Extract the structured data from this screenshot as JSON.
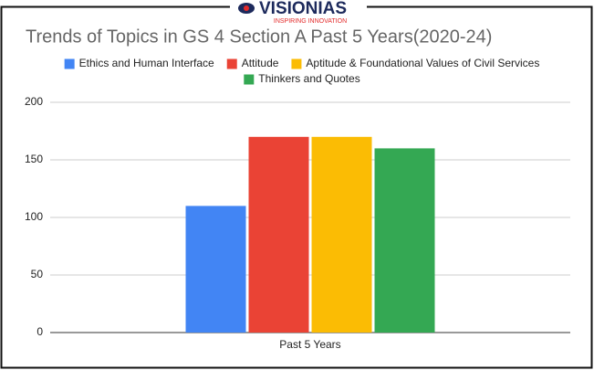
{
  "logo": {
    "name": "VISIONIAS",
    "tagline": "INSPIRING INNOVATION"
  },
  "chart_data": {
    "type": "bar",
    "title": "Trends of Topics in GS 4 Section A Past 5 Years(2020-24)",
    "categories": [
      "Past 5 Years"
    ],
    "series": [
      {
        "name": "Ethics and Human Interface",
        "color": "#4285f4",
        "values": [
          110
        ]
      },
      {
        "name": "Attitude",
        "color": "#ea4335",
        "values": [
          170
        ]
      },
      {
        "name": "Aptitude & Foundational Values of Civil Services",
        "color": "#fbbc04",
        "values": [
          170
        ]
      },
      {
        "name": "Thinkers and Quotes",
        "color": "#34a853",
        "values": [
          160
        ]
      }
    ],
    "ylim": [
      0,
      200
    ],
    "yticks": [
      0,
      50,
      100,
      150,
      200
    ],
    "grid": true,
    "legend": "top"
  }
}
